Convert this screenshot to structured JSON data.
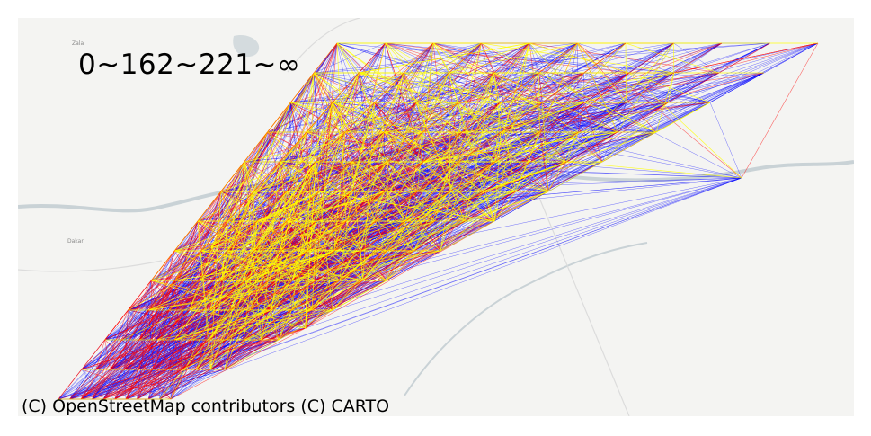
{
  "map": {
    "title": "0~162~221~∞",
    "attribution": "(C) OpenStreetMap contributors (C) CARTO",
    "basemap_labels": [
      "Zala",
      "Dakar"
    ],
    "colors": {
      "background": "#f4f4f2",
      "river": "#c9d2d6",
      "road": "#d9d9d9",
      "band_low": "#0000ff",
      "band_mid": "#ff0000",
      "band_high": "#ffff00"
    },
    "legend_bands": [
      "0",
      "162",
      "221",
      "∞"
    ]
  }
}
